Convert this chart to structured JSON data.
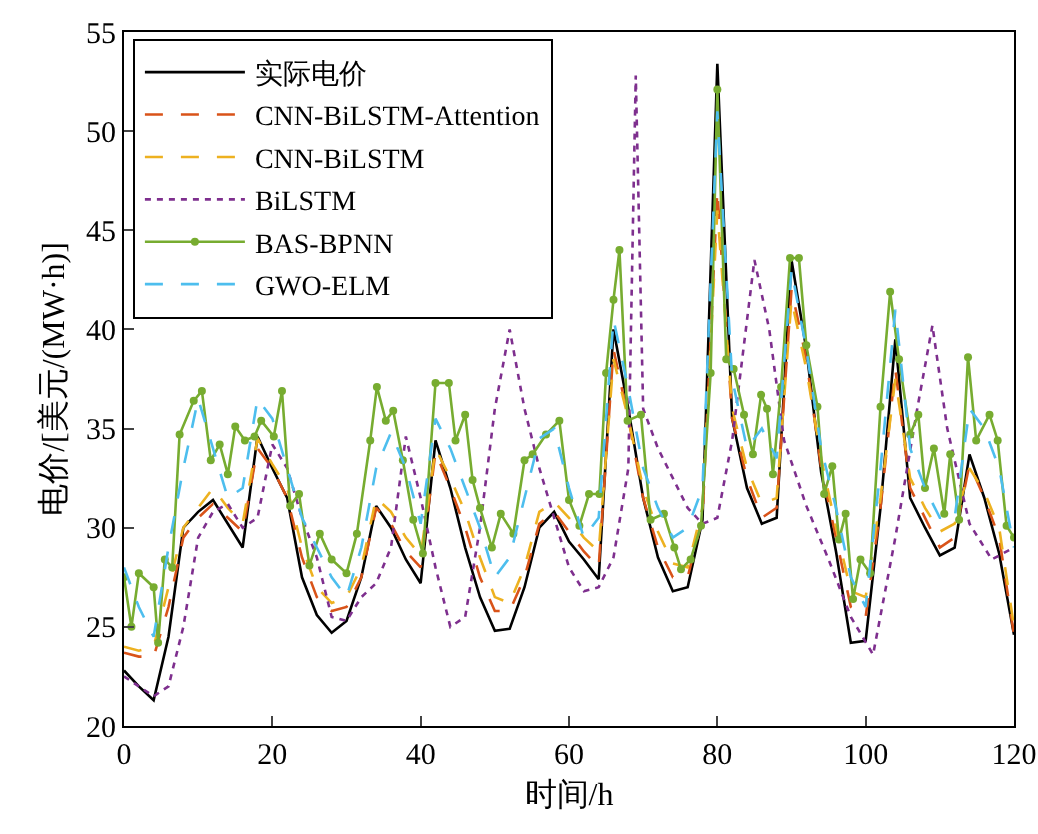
{
  "chart_data": {
    "type": "line",
    "xlabel": "时间/h",
    "ylabel": "电价/[美元/(MW·h)]",
    "xlim": [
      0,
      120
    ],
    "xticks": [
      0,
      20,
      40,
      60,
      80,
      100,
      120
    ],
    "ylim": [
      20,
      55
    ],
    "yticks": [
      20,
      25,
      30,
      35,
      40,
      45,
      50,
      55
    ],
    "legend": "top left",
    "x": [
      0,
      2,
      4,
      6,
      8,
      10,
      12,
      14,
      16,
      18,
      20,
      22,
      24,
      26,
      28,
      30,
      32,
      34,
      36,
      38,
      40,
      42,
      44,
      46,
      48,
      50,
      52,
      54,
      56,
      58,
      60,
      62,
      64,
      66,
      68,
      70,
      72,
      74,
      76,
      78,
      80,
      82,
      84,
      86,
      88,
      90,
      92,
      94,
      96,
      98,
      100,
      102,
      104,
      106,
      108,
      110,
      112,
      114,
      116,
      118,
      120
    ],
    "series": [
      {
        "name": "实际电价",
        "color": "#000000",
        "line_style": "solid",
        "values": [
          22.8,
          22,
          21.3,
          24.5,
          30,
          30.8,
          31.4,
          30.2,
          29,
          34.6,
          33,
          31.5,
          27.5,
          25.6,
          24.7,
          25.3,
          27.5,
          31.1,
          30,
          28.4,
          27.2,
          34.4,
          32,
          29,
          26.5,
          24.8,
          24.9,
          27,
          30,
          30.8,
          29.3,
          28.4,
          27.4,
          40,
          36,
          31.5,
          28.5,
          26.8,
          27,
          30.4,
          53.4,
          35.5,
          32,
          30.2,
          30.5,
          43.5,
          39,
          32.8,
          28.8,
          24.2,
          24.3,
          31,
          39.5,
          31.5,
          30,
          28.6,
          29,
          33.7,
          31.5,
          28.7,
          24.6
        ]
      },
      {
        "name": "CNN-BiLSTM-Attention",
        "color": "#d95319",
        "line_style": "dashed",
        "values": [
          23.7,
          23.5,
          23.5,
          26,
          29.5,
          30.5,
          31.2,
          30.5,
          29.8,
          34,
          33,
          31.5,
          28.5,
          26.5,
          25.8,
          26,
          27.5,
          31,
          30.2,
          28.8,
          28,
          33.8,
          32,
          30,
          27.5,
          25.8,
          25.8,
          27.5,
          30.2,
          30.8,
          29.8,
          28.8,
          28,
          39,
          35.5,
          31.5,
          29,
          27.5,
          27.5,
          30.5,
          47,
          35.5,
          32.5,
          30.5,
          31,
          42,
          38.5,
          33,
          29.5,
          26,
          25.5,
          31,
          38,
          32,
          30.5,
          29,
          29.5,
          33.2,
          31.5,
          29.5,
          24.6
        ]
      },
      {
        "name": "CNN-BiLSTM",
        "color": "#edb120",
        "line_style": "dashed",
        "values": [
          24,
          23.8,
          24,
          27,
          30,
          31,
          32,
          31,
          30.2,
          34.5,
          33.2,
          32,
          29,
          27,
          26.2,
          26.5,
          28,
          31.5,
          30.8,
          29.5,
          28.6,
          34,
          32.5,
          30.8,
          28.5,
          26.5,
          26.2,
          28,
          30.8,
          31.3,
          30.5,
          29.5,
          28.8,
          38.5,
          35.5,
          32,
          29.8,
          28.2,
          28,
          31,
          46,
          36,
          33,
          31.2,
          31.5,
          41.5,
          38,
          33.5,
          30,
          26.8,
          26.5,
          31.5,
          37.5,
          32.5,
          31,
          29.8,
          30.2,
          33,
          31.8,
          30,
          25
        ]
      },
      {
        "name": "BiLSTM",
        "color": "#7e2f8e",
        "line_style": "dotted",
        "x": [
          0,
          2,
          4,
          6,
          8,
          10,
          12,
          14,
          16,
          18,
          20,
          22,
          24,
          26,
          28,
          30,
          32,
          34,
          36,
          38,
          40,
          42,
          44,
          46,
          48,
          50,
          52,
          54,
          56,
          58,
          60,
          62,
          64,
          66,
          68,
          69,
          70,
          72,
          74,
          76,
          78,
          80,
          82,
          85,
          87,
          89,
          92,
          95,
          98,
          101,
          104,
          107,
          109,
          111,
          114,
          117,
          120
        ],
        "values": [
          22.5,
          22,
          21.5,
          22,
          25,
          29.5,
          30.8,
          31.2,
          30,
          30.5,
          34.2,
          33,
          30.5,
          28.5,
          25.5,
          25.3,
          26.5,
          27.2,
          29,
          34.6,
          31.5,
          28,
          25,
          25.5,
          30,
          36,
          40,
          36,
          33,
          30.5,
          28,
          26.8,
          27,
          28.5,
          33,
          52.8,
          36,
          34,
          32.5,
          31,
          30.2,
          30.5,
          34.4,
          43.5,
          40,
          34.4,
          31.1,
          28.4,
          25.5,
          23.6,
          29.5,
          36.1,
          40.2,
          35,
          30.2,
          28.4,
          29
        ]
      },
      {
        "name": "BAS-BPNN",
        "color": "#77ac30",
        "line_style": "solid",
        "marker": "circle",
        "x": [
          0,
          1,
          2,
          4,
          4.6,
          5.5,
          6.5,
          7.5,
          9.4,
          10.5,
          11.7,
          12.9,
          14,
          15,
          16.3,
          17.6,
          18.5,
          20.2,
          21.3,
          22.4,
          23.6,
          25,
          26.4,
          28,
          30,
          31.4,
          33.2,
          34.1,
          35.3,
          36.3,
          37.6,
          39,
          40.3,
          42,
          43.8,
          44.7,
          46,
          47,
          48,
          49.6,
          50.8,
          52.5,
          54,
          55.1,
          56.9,
          58.7,
          60,
          61.4,
          62.7,
          64.1,
          65,
          66,
          66.8,
          67.9,
          69.7,
          71,
          72.8,
          74.2,
          75.1,
          76.4,
          77.8,
          79.1,
          80,
          81.2,
          82.2,
          83.6,
          84.8,
          85.9,
          86.7,
          87.5,
          88.6,
          89.8,
          91,
          92,
          93.5,
          94.4,
          95.5,
          96.4,
          97.3,
          98.3,
          99.3,
          100.6,
          102,
          103.3,
          104.5,
          106,
          107.1,
          108,
          109.2,
          110.6,
          111.4,
          112.6,
          113.8,
          114.9,
          116.7,
          117.8,
          119,
          120
        ],
        "values": [
          27.5,
          25,
          27.7,
          27,
          24.2,
          28.4,
          28,
          34.7,
          36.4,
          36.9,
          33.4,
          34.2,
          32.7,
          35.1,
          34.4,
          34.6,
          35.4,
          34.6,
          36.9,
          31.1,
          31.7,
          28.1,
          29.7,
          28.4,
          27.7,
          29.7,
          34.4,
          37.1,
          35.4,
          35.9,
          33.4,
          30.4,
          28.7,
          37.3,
          37.3,
          34.4,
          35.7,
          32.4,
          31,
          29,
          30.7,
          29.7,
          33.4,
          33.7,
          34.7,
          35.4,
          31.4,
          30.1,
          31.7,
          31.7,
          37.8,
          41.5,
          44,
          35.4,
          35.7,
          30.4,
          30.7,
          29,
          27.9,
          28.4,
          30.1,
          37.8,
          52.1,
          38.5,
          38,
          35.7,
          33.7,
          36.7,
          36,
          32.7,
          37.1,
          43.6,
          43.6,
          39.2,
          36.1,
          31.7,
          33.1,
          29.4,
          30.7,
          26.4,
          28.4,
          27.7,
          36.1,
          41.9,
          38.5,
          34.7,
          35.7,
          32,
          34,
          30.7,
          33.7,
          30.4,
          38.6,
          34.4,
          35.7,
          34.4,
          30.1,
          29.5
        ]
      },
      {
        "name": "GWO-ELM",
        "color": "#4dbeee",
        "line_style": "dashed",
        "values": [
          28,
          26,
          24.5,
          29,
          33,
          36.5,
          34,
          31.5,
          32,
          36.5,
          35.5,
          33,
          30.5,
          29,
          27.5,
          26.5,
          29,
          33,
          34.8,
          33,
          30.2,
          35.5,
          34,
          32,
          30,
          27.5,
          28.5,
          31.5,
          34.5,
          35,
          32,
          29.5,
          30.5,
          40.5,
          37,
          33,
          31,
          29.5,
          30,
          32,
          51,
          37.5,
          34,
          35,
          33.5,
          43,
          39,
          34,
          31,
          27.5,
          26,
          33,
          41,
          34,
          32,
          30.5,
          30.5,
          36,
          35,
          33,
          29
        ]
      }
    ]
  }
}
